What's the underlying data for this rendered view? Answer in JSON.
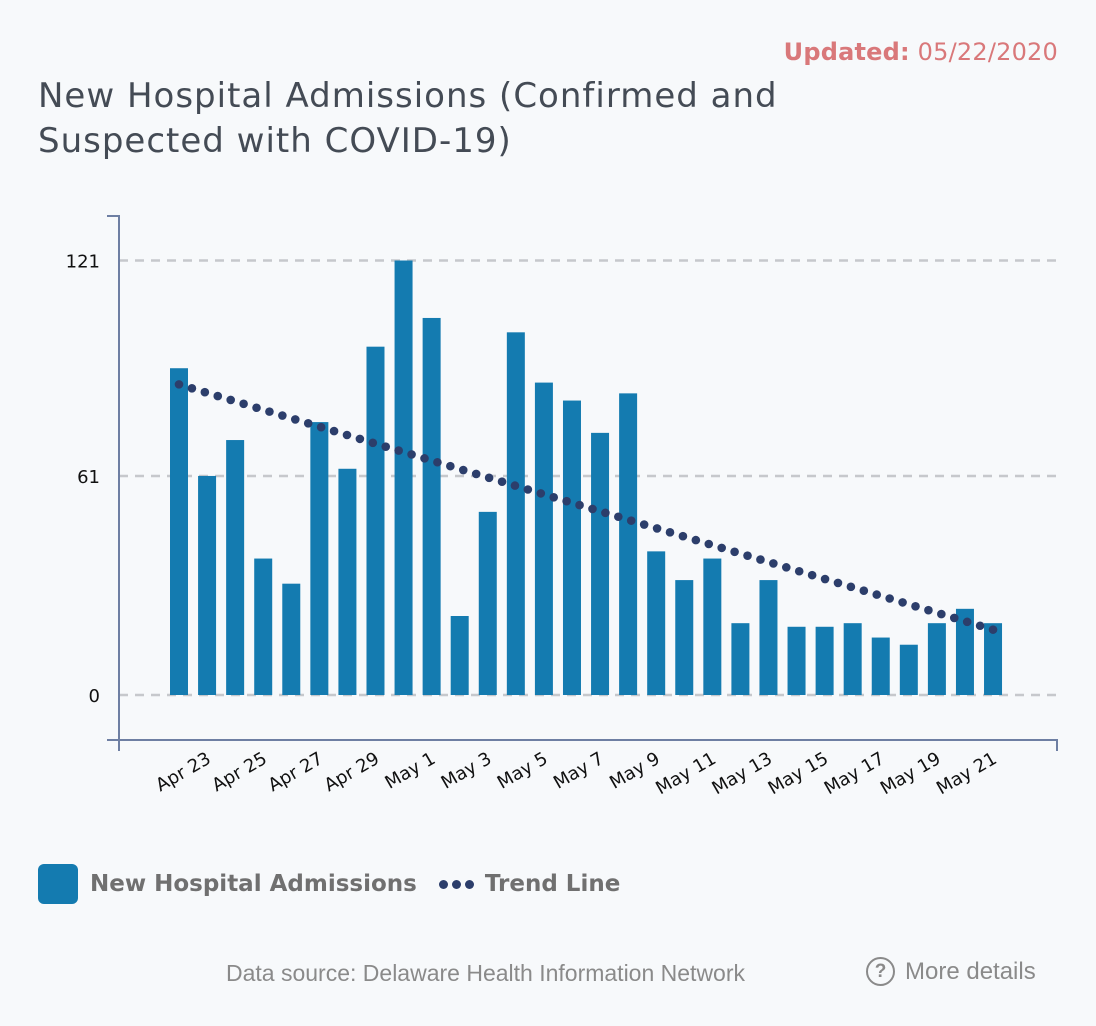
{
  "header": {
    "updated_label": "Updated:",
    "updated_date": "05/22/2020",
    "title": "New Hospital Admissions (Confirmed and Suspected with COVID-19)"
  },
  "colors": {
    "bar": "#147bb0",
    "trend": "#2c3e6b",
    "axis": "#6e7fa3",
    "grid": "#c6c8cc",
    "updated": "#d9787a"
  },
  "legend": {
    "items": [
      {
        "label": "New Hospital Admissions",
        "icon": "square-swatch-icon"
      },
      {
        "label": "Trend Line",
        "icon": "dotted-line-icon"
      }
    ]
  },
  "footer": {
    "data_source": "Data source: Delaware Health Information Network",
    "more_details": "More details",
    "more_icon": "question-circle-icon"
  },
  "chart_data": {
    "type": "bar",
    "title": "New Hospital Admissions (Confirmed and Suspected with COVID-19)",
    "xlabel": "",
    "ylabel": "",
    "ylim": [
      0,
      121
    ],
    "yticks": [
      0,
      61,
      121
    ],
    "grid": true,
    "legend_position": "bottom-left",
    "categories": [
      "Apr 22",
      "Apr 23",
      "Apr 24",
      "Apr 25",
      "Apr 26",
      "Apr 27",
      "Apr 28",
      "Apr 29",
      "Apr 30",
      "May 1",
      "May 2",
      "May 3",
      "May 4",
      "May 5",
      "May 6",
      "May 7",
      "May 8",
      "May 9",
      "May 10",
      "May 11",
      "May 12",
      "May 13",
      "May 14",
      "May 15",
      "May 16",
      "May 17",
      "May 18",
      "May 19",
      "May 20",
      "May 21"
    ],
    "tick_labels": [
      "Apr 23",
      "Apr 25",
      "Apr 27",
      "Apr 29",
      "May 1",
      "May 3",
      "May 5",
      "May 7",
      "May 9",
      "May 11",
      "May 13",
      "May 15",
      "May 17",
      "May 19",
      "May 21"
    ],
    "series": [
      {
        "name": "New Hospital Admissions",
        "type": "bar",
        "values": [
          91,
          61,
          71,
          38,
          31,
          76,
          63,
          97,
          121,
          105,
          22,
          51,
          101,
          87,
          82,
          73,
          84,
          40,
          32,
          38,
          20,
          32,
          19,
          19,
          20,
          16,
          14,
          20,
          24,
          20
        ]
      },
      {
        "name": "Trend Line",
        "type": "line",
        "style": "dotted",
        "start": {
          "category": "Apr 22",
          "value": 86.5
        },
        "end": {
          "category": "May 21",
          "value": 18.2
        }
      }
    ]
  }
}
